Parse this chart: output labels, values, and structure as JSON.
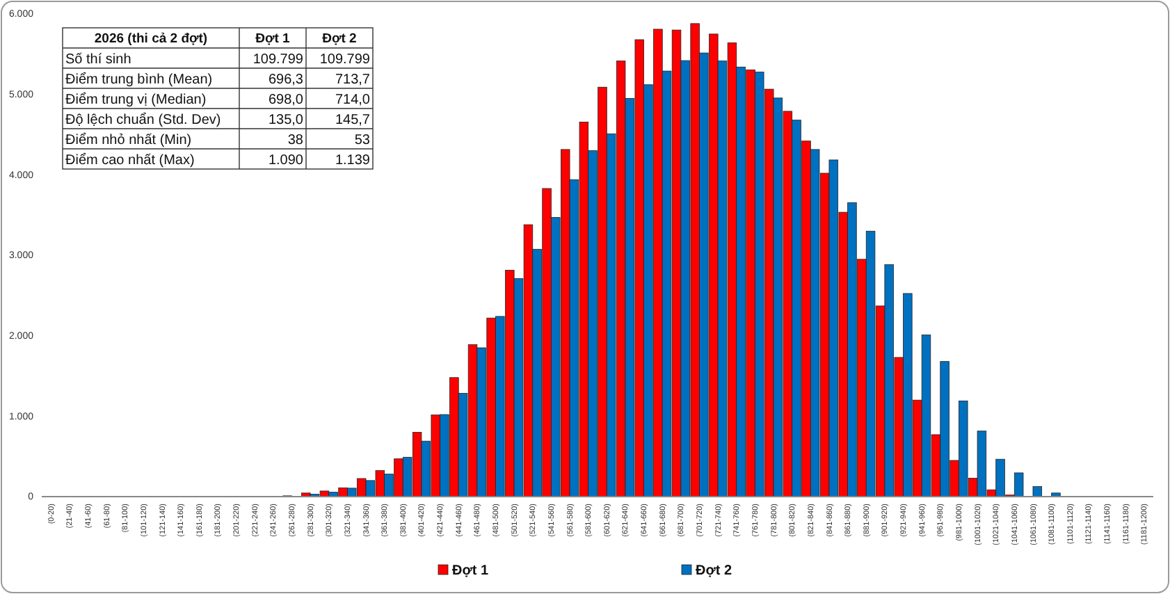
{
  "chart_data": {
    "type": "bar",
    "categories": [
      "(0-20)",
      "(21-40)",
      "(41-60)",
      "(61-80)",
      "(81-100)",
      "(101-120)",
      "(121-140)",
      "(141-160)",
      "(161-180)",
      "(181-200)",
      "(201-220)",
      "(221-240)",
      "(241-260)",
      "(261-280)",
      "(281-300)",
      "(301-320)",
      "(321-340)",
      "(341-360)",
      "(361-380)",
      "(381-400)",
      "(401-420)",
      "(421-440)",
      "(441-460)",
      "(461-480)",
      "(481-500)",
      "(501-520)",
      "(521-540)",
      "(541-560)",
      "(561-580)",
      "(581-600)",
      "(601-620)",
      "(621-640)",
      "(641-660)",
      "(661-680)",
      "(681-700)",
      "(701-720)",
      "(721-740)",
      "(741-760)",
      "(761-780)",
      "(781-800)",
      "(801-820)",
      "(821-840)",
      "(841-860)",
      "(861-880)",
      "(881-900)",
      "(901-920)",
      "(921-940)",
      "(941-960)",
      "(961-980)",
      "(981-1000)",
      "(1001-1020)",
      "(1021-1040)",
      "(1041-1060)",
      "(1061-1080)",
      "(1081-1100)",
      "(1101-1120)",
      "(1121-1140)",
      "(1141-1160)",
      "(1161-1180)",
      "(1181-1200)"
    ],
    "series": [
      {
        "name": "Đợt 1",
        "color": "#ff0000",
        "values": [
          0,
          0,
          0,
          0,
          0,
          0,
          0,
          0,
          0,
          0,
          0,
          0,
          0,
          10,
          45,
          70,
          110,
          225,
          325,
          470,
          800,
          1015,
          1480,
          1890,
          2220,
          2815,
          3380,
          3830,
          4315,
          4655,
          5090,
          5415,
          5680,
          5810,
          5800,
          5880,
          5750,
          5640,
          5305,
          5065,
          4790,
          4420,
          4020,
          3535,
          2950,
          2370,
          1730,
          1200,
          770,
          450,
          230,
          85,
          20,
          0,
          0,
          0,
          0,
          0,
          0,
          0
        ]
      },
      {
        "name": "Đợt 2",
        "color": "#0070c0",
        "values": [
          0,
          0,
          0,
          0,
          0,
          0,
          0,
          0,
          0,
          0,
          0,
          0,
          0,
          0,
          30,
          55,
          105,
          200,
          280,
          490,
          690,
          1020,
          1285,
          1850,
          2240,
          2710,
          3075,
          3470,
          3940,
          4300,
          4510,
          4950,
          5120,
          5290,
          5420,
          5515,
          5415,
          5340,
          5277,
          4955,
          4680,
          4315,
          4185,
          3655,
          3300,
          2885,
          2525,
          2010,
          1680,
          1190,
          815,
          465,
          295,
          125,
          45,
          0,
          0,
          0,
          0,
          0
        ]
      }
    ],
    "ylim": [
      0,
      6000
    ],
    "yticks": [
      {
        "value": 0,
        "label": "0"
      },
      {
        "value": 1000,
        "label": "1.000"
      },
      {
        "value": 2000,
        "label": "2.000"
      },
      {
        "value": 3000,
        "label": "3.000"
      },
      {
        "value": 4000,
        "label": "4.000"
      },
      {
        "value": 5000,
        "label": "5.000"
      },
      {
        "value": 6000,
        "label": "6.000"
      }
    ],
    "grid": false,
    "legend": "bottom",
    "annotations": [
      "2026 (thi cả 2 đợt)",
      "Đợt 1",
      "Đợt 2",
      "Số thí sinh",
      "109.799",
      "109.799",
      "Điểm trung bình (Mean)",
      "696,3",
      "713,7",
      "Điểm trung vị (Median)",
      "698,0",
      "714,0",
      "Độ lệch chuẩn (Std. Dev)",
      "135,0",
      "145,7",
      "Điểm nhỏ nhất (Min)",
      "38",
      "53",
      "Điểm cao nhất (Max)",
      "1.090",
      "1.139"
    ]
  }
}
